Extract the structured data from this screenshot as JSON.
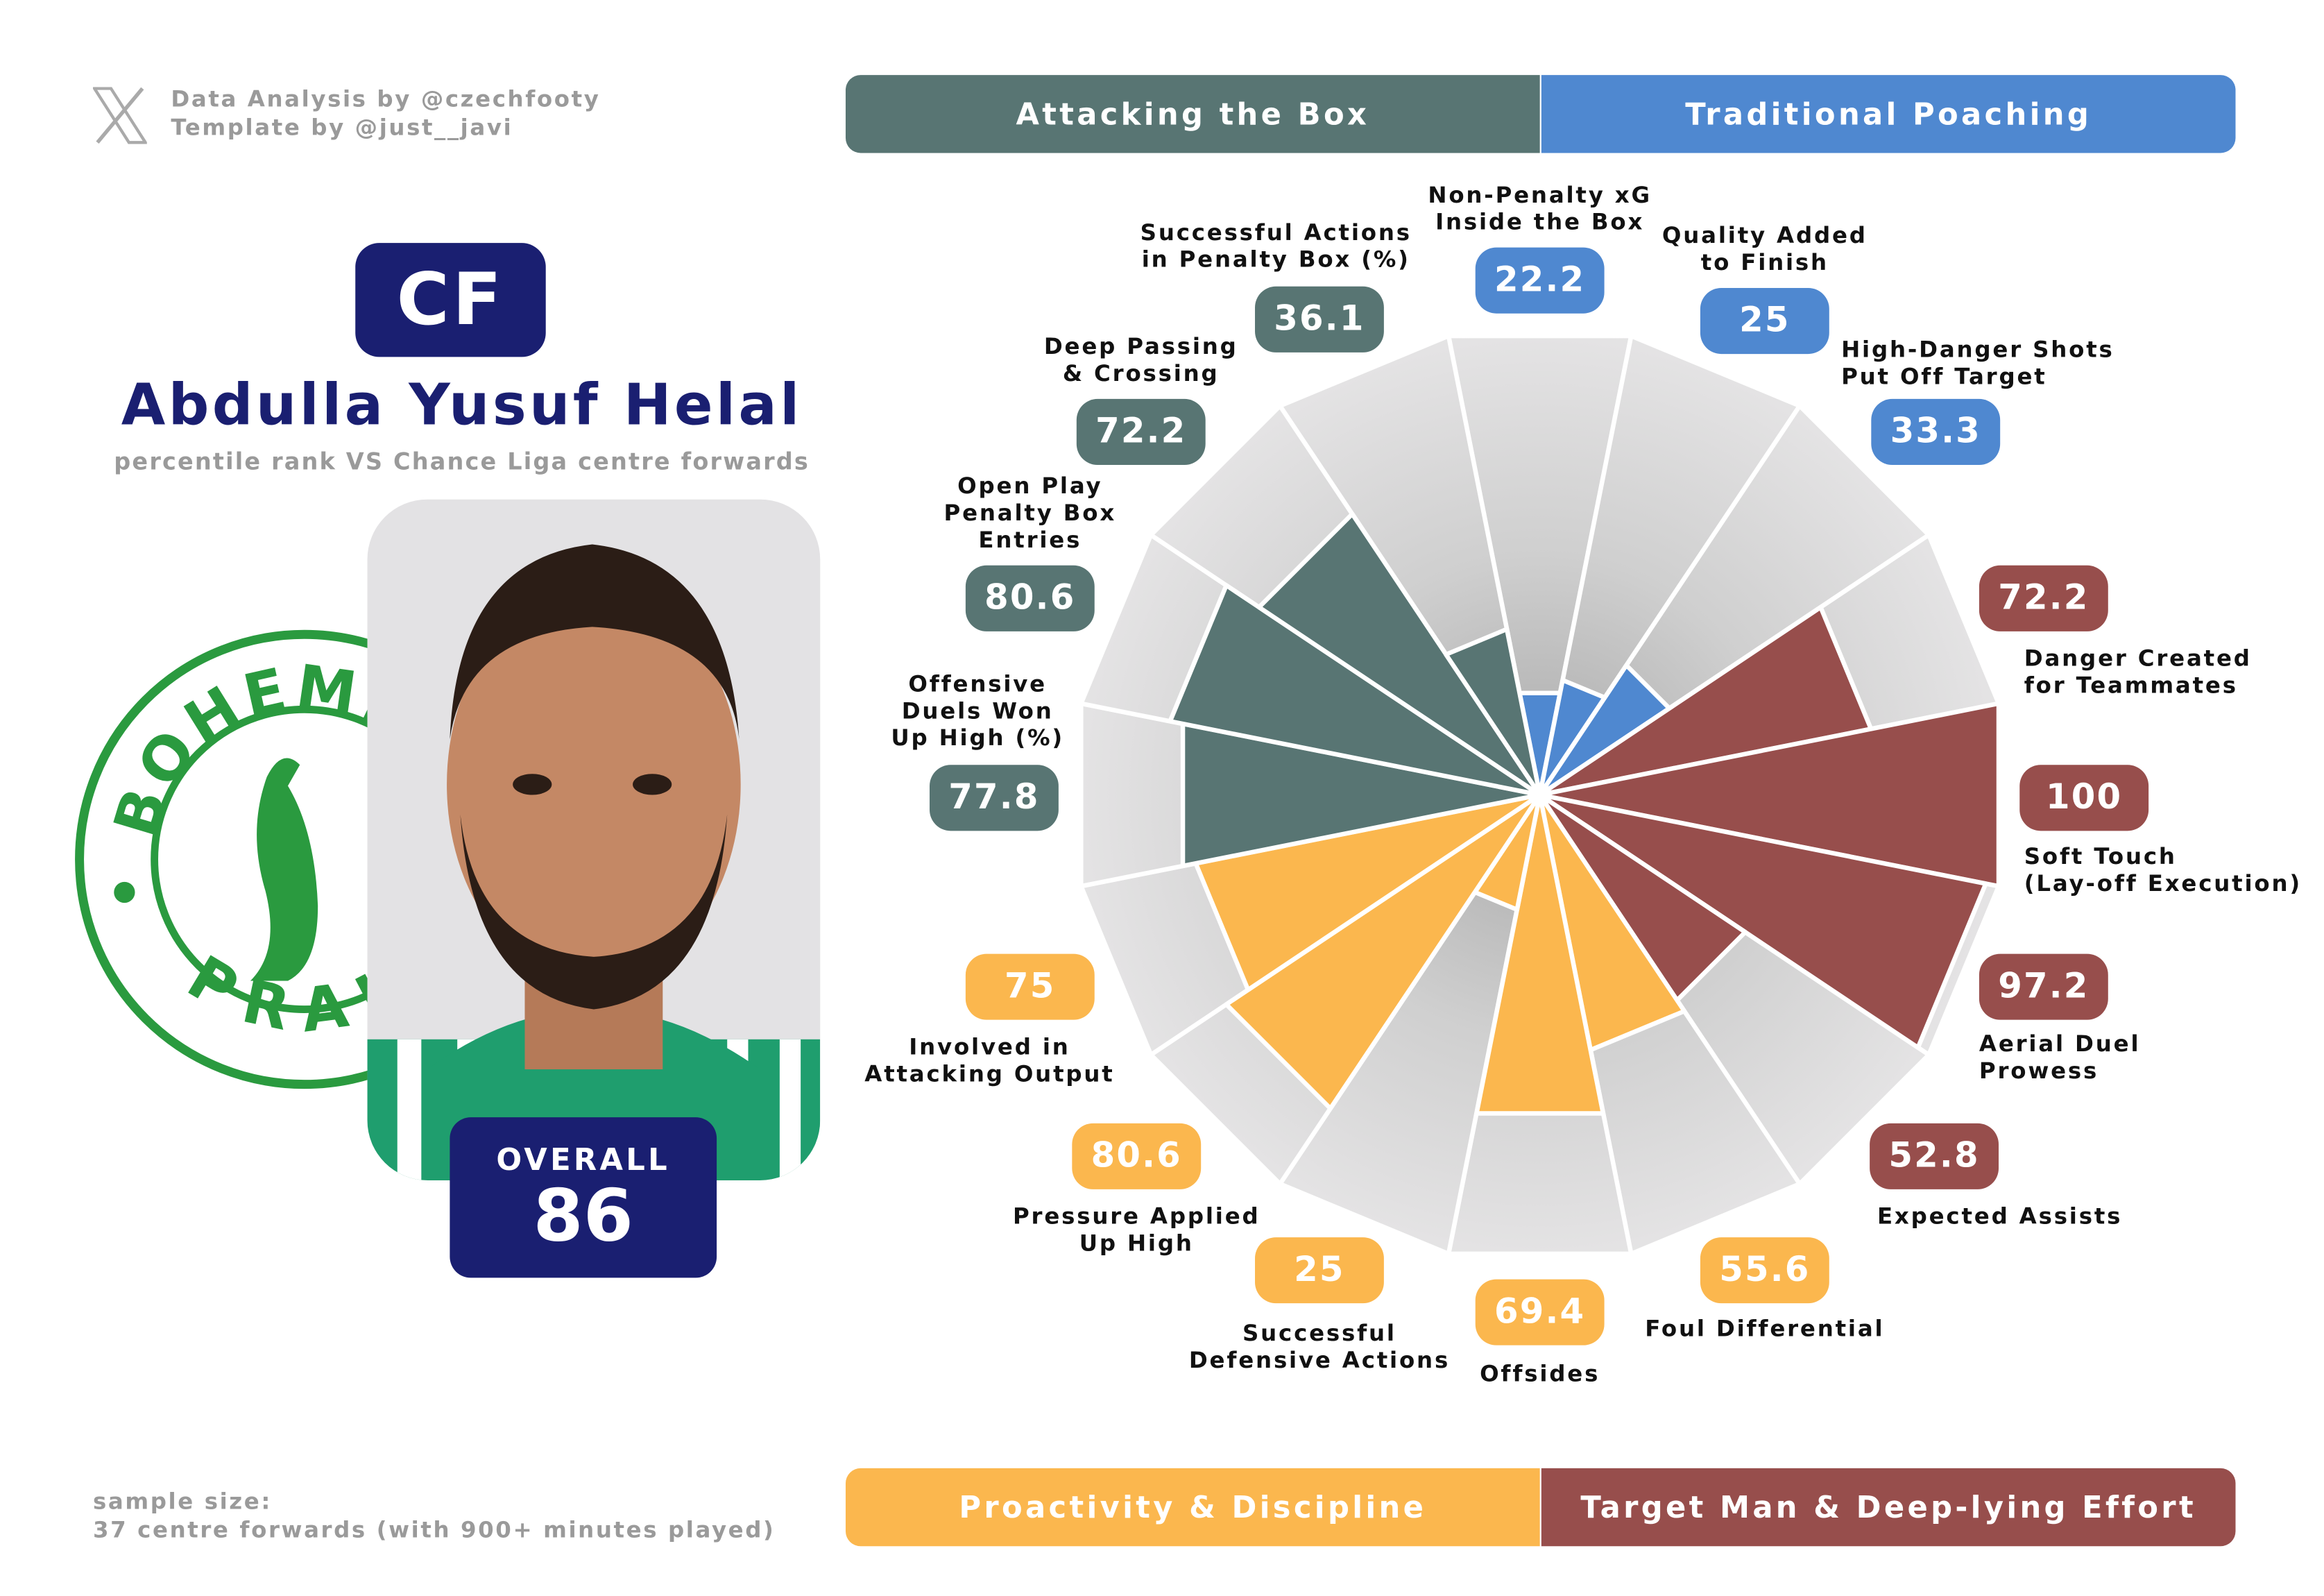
{
  "credits": {
    "line1": "Data Analysis by @czechfooty",
    "line2": "Template by @just__javi"
  },
  "player": {
    "position": "CF",
    "name": "Abdulla Yusuf Helal",
    "subtitle": "percentile rank VS Chance Liga centre forwards",
    "overall_label": "OVERALL",
    "overall_value": "86",
    "club_logo_text": [
      "BOHEMIANS",
      "PRAHA"
    ]
  },
  "sample": {
    "text": "sample size:\n37 centre forwards (with 900+ minutes played)"
  },
  "groups": [
    {
      "name": "Attacking the Box",
      "color": "#587573"
    },
    {
      "name": "Traditional Poaching",
      "color": "#4f88d0"
    },
    {
      "name": "Proactivity & Discipline",
      "color": "#fbb74e"
    },
    {
      "name": "Target Man & Deep-lying Effort",
      "color": "#974e4c"
    }
  ],
  "chart_data": {
    "type": "polar-bar",
    "range": [
      0,
      100
    ],
    "categories": [
      "Non-Penalty xG\nInside the Box",
      "Quality Added\nto Finish",
      "High-Danger Shots\nPut Off Target",
      "Danger Created\nfor Teammates",
      "Soft Touch\n(Lay-off Execution)",
      "Aerial Duel\nProwess",
      "Expected Assists",
      "Foul Differential",
      "Offsides",
      "Successful\nDefensive Actions",
      "Pressure Applied\nUp High",
      "Involved in\nAttacking Output",
      "Offensive\nDuels Won\nUp High (%)",
      "Open Play\nPenalty Box\nEntries",
      "Deep Passing\n& Crossing",
      "Successful Actions\nin Penalty Box (%)"
    ],
    "values": [
      22.2,
      25,
      33.3,
      72.2,
      100,
      97.2,
      52.8,
      55.6,
      69.4,
      25,
      80.6,
      75,
      77.8,
      80.6,
      72.2,
      36.1
    ],
    "value_labels": [
      "22.2",
      "25",
      "33.3",
      "72.2",
      "100",
      "97.2",
      "52.8",
      "55.6",
      "69.4",
      "25",
      "80.6",
      "75",
      "77.8",
      "80.6",
      "72.2",
      "36.1"
    ],
    "group_index": [
      1,
      1,
      1,
      3,
      3,
      3,
      3,
      2,
      2,
      2,
      2,
      2,
      0,
      0,
      0,
      0
    ]
  }
}
